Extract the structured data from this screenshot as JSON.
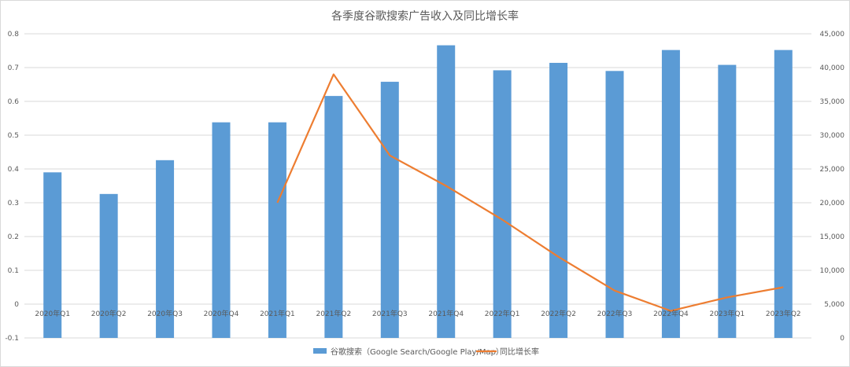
{
  "chart_data": {
    "type": "bar",
    "title": "各季度谷歌搜索广告收入及同比增长率",
    "categories": [
      "2020年Q1",
      "2020年Q2",
      "2020年Q3",
      "2020年Q4",
      "2021年Q1",
      "2021年Q2",
      "2021年Q3",
      "2021年Q4",
      "2022年Q1",
      "2022年Q2",
      "2022年Q3",
      "2022年Q4",
      "2023年Q1",
      "2023年Q2"
    ],
    "series": [
      {
        "name": "谷歌搜索（Google Search/Google Play/Map）",
        "type": "bar",
        "axis": "right",
        "color": "#5b9bd5",
        "values": [
          24500,
          21300,
          26300,
          31900,
          31900,
          35800,
          37900,
          43300,
          39600,
          40700,
          39500,
          42600,
          40400,
          42600
        ]
      },
      {
        "name": "同比增长率",
        "type": "line",
        "axis": "left",
        "color": "#ed7d31",
        "values": [
          null,
          null,
          null,
          null,
          0.3,
          0.68,
          0.44,
          0.35,
          0.25,
          0.14,
          0.04,
          -0.02,
          0.02,
          0.05
        ]
      }
    ],
    "ylim_left": [
      -0.1,
      0.8
    ],
    "yticks_left": [
      "-0.1",
      "0",
      "0.1",
      "0.2",
      "0.3",
      "0.4",
      "0.5",
      "0.6",
      "0.7",
      "0.8"
    ],
    "ylim_right": [
      0,
      45000
    ],
    "yticks_right": [
      "0",
      "5,000",
      "10,000",
      "15,000",
      "20,000",
      "25,000",
      "30,000",
      "35,000",
      "40,000",
      "45,000"
    ],
    "grid": true,
    "legend_position": "bottom"
  }
}
